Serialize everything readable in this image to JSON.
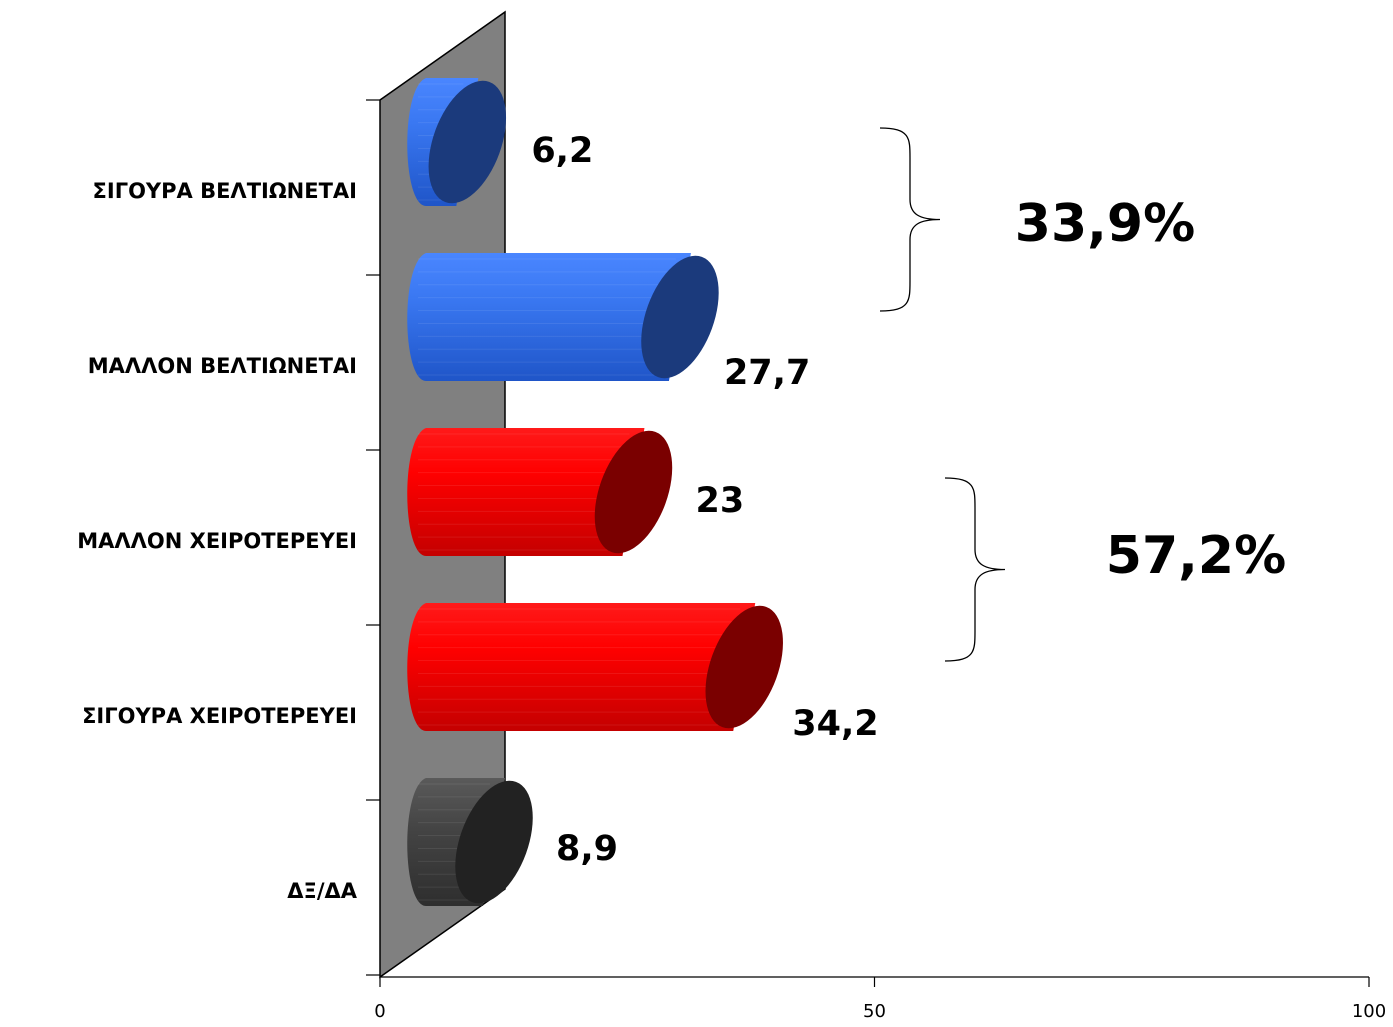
{
  "chart_data": {
    "type": "bar",
    "orientation": "horizontal",
    "style": "3d-cylinder",
    "categories": [
      "ΣΙΓΟΥΡΑ ΒΕΛΤΙΩΝΕΤΑΙ",
      "ΜΑΛΛΟΝ ΒΕΛΤΙΩΝΕΤΑΙ",
      "ΜΑΛΛΟΝ ΧΕΙΡΟΤΕΡΕΥΕΙ",
      "ΣΙΓΟΥΡΑ ΧΕΙΡΟΤΕΡΕΥΕΙ",
      "ΔΞ/ΔΑ"
    ],
    "values": [
      6.2,
      27.7,
      23,
      34.2,
      8.9
    ],
    "value_labels": [
      "6,2",
      "27,7",
      "23",
      "34,2",
      "8,9"
    ],
    "bar_colors": [
      "blue",
      "blue",
      "red",
      "red",
      "dark-gray"
    ],
    "xlim": [
      0,
      100
    ],
    "x_ticks": [
      {
        "value": 0,
        "label": "0"
      },
      {
        "value": 50,
        "label": "50"
      },
      {
        "value": 100,
        "label": "100"
      }
    ],
    "grid": false,
    "legend": "none",
    "group_annotations": [
      {
        "categories": [
          "ΣΙΓΟΥΡΑ ΒΕΛΤΙΩΝΕΤΑΙ",
          "ΜΑΛΛΟΝ ΒΕΛΤΙΩΝΕΤΑΙ"
        ],
        "label": "33,9%"
      },
      {
        "categories": [
          "ΜΑΛΛΟΝ ΧΕΙΡΟΤΕΡΕΥΕΙ",
          "ΣΙΓΟΥΡΑ ΧΕΙΡΟΤΕΡΕΥΕΙ"
        ],
        "label": "57,2%"
      }
    ],
    "colors": {
      "blue_light": "#3a78f2",
      "blue_mid": "#2a63d9",
      "blue_dark": "#1b3a7c",
      "red_light": "#ff2020",
      "red_mid": "#d80000",
      "red_dark": "#7a0000",
      "gray_light": "#555555",
      "gray_mid": "#3a3a3a",
      "gray_dark": "#222222",
      "wall": "#808080"
    }
  }
}
